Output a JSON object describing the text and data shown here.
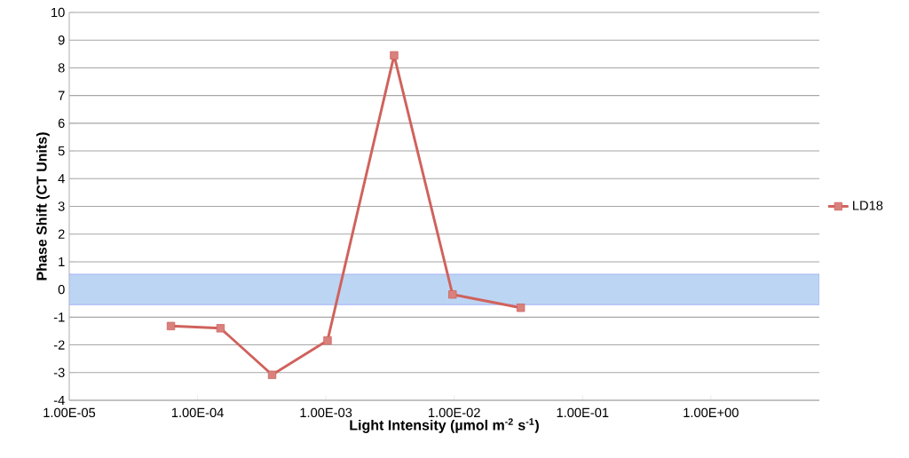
{
  "chart_data": {
    "type": "line",
    "xlabel": "Light Intensity (µmol m$^{-2}$ s$^{-1}$)",
    "ylabel": "Phase Shift (CT Units)",
    "x": [
      6.2e-05,
      0.000151,
      0.000381,
      0.00103,
      0.0034,
      0.0097,
      0.033
    ],
    "series": [
      {
        "name": "LD18",
        "color": "#d0625c",
        "values": [
          -1.32,
          -1.4,
          -3.08,
          -1.84,
          8.45,
          -0.18,
          -0.66
        ]
      }
    ],
    "log": "x",
    "xlim": [
      1e-05,
      7
    ],
    "xticks": [
      {
        "value": 1e-05,
        "label": "1.00E-05"
      },
      {
        "value": 0.0001,
        "label": "1.00E-04"
      },
      {
        "value": 0.001,
        "label": "1.00E-03"
      },
      {
        "value": 0.01,
        "label": "1.00E-02"
      },
      {
        "value": 0.1,
        "label": "1.00E-01"
      },
      {
        "value": 1,
        "label": "1.00E+00"
      }
    ],
    "ylim": [
      -4,
      10
    ],
    "yticks": [
      -4,
      -3,
      -2,
      -1,
      0,
      1,
      2,
      3,
      4,
      5,
      6,
      7,
      8,
      9,
      10
    ],
    "grid": "y",
    "legend": "right",
    "marker": "square",
    "line_style": "solid",
    "bands": [
      {
        "axis": "y",
        "from": -0.55,
        "to": 0.55,
        "color": "#bcd5f3"
      }
    ]
  }
}
